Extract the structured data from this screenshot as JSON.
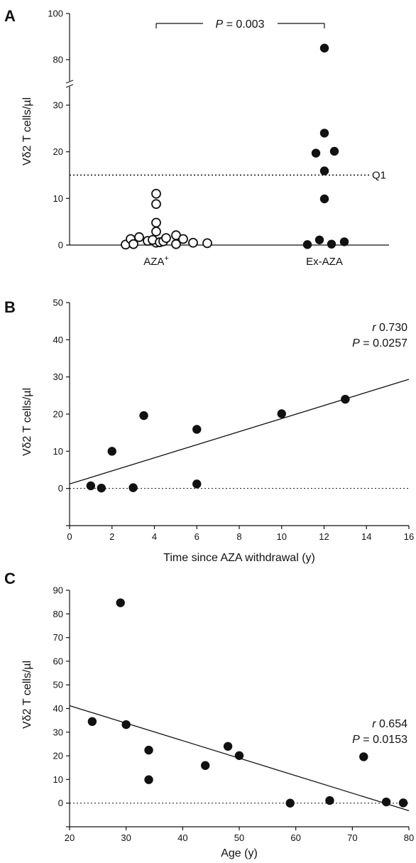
{
  "chart_data": [
    {
      "panel": "A",
      "type": "scatter",
      "ylabel": "Vδ2  T cells/µl",
      "categories": [
        "AZA⁺",
        "Ex-AZA"
      ],
      "category_sup": [
        "+",
        ""
      ],
      "category_base": [
        "AZA",
        "Ex-AZA"
      ],
      "yticks_lower": [
        0,
        10,
        20,
        30
      ],
      "yticks_upper": [
        80,
        100
      ],
      "axis_break": true,
      "series": [
        {
          "category": "AZA⁺",
          "marker": "open-circle",
          "values": [
            11,
            8.8,
            4.8,
            2.9,
            0.5,
            0.1,
            1.3,
            0.2,
            1.7,
            0.9,
            1.1,
            0.6,
            0.8,
            1.5,
            0.2,
            2.1,
            1.3,
            0.5,
            0.4
          ]
        },
        {
          "category": "Ex-AZA",
          "marker": "filled-circle",
          "values": [
            85,
            24,
            19.7,
            20.1,
            15.9,
            9.9,
            0.1,
            1.1,
            0.2,
            0.7
          ]
        }
      ],
      "reference_line": {
        "value": 15,
        "label": "Q1"
      },
      "comparison": {
        "label_italic": "P",
        "label_rest": " = 0.003"
      }
    },
    {
      "panel": "B",
      "type": "scatter",
      "xlabel": "Time since AZA withdrawal (y)",
      "ylabel": "Vδ2  T cells/µl",
      "xlim": [
        0,
        16
      ],
      "ylim": [
        -10,
        50
      ],
      "xticks": [
        0,
        2,
        4,
        6,
        8,
        10,
        12,
        14,
        16
      ],
      "yticks": [
        0,
        10,
        20,
        30,
        40,
        50
      ],
      "x": [
        1,
        1.5,
        2,
        3,
        3.5,
        6,
        6,
        10,
        13
      ],
      "y": [
        0.7,
        0.1,
        10,
        0.2,
        19.6,
        15.9,
        1.2,
        20.1,
        24
      ],
      "fit": {
        "intercept": 1.2,
        "slope": 1.76
      },
      "stats": {
        "r_italic": "r",
        "r_value": " 0.730",
        "p_italic": "P",
        "p_value": " = 0.0257"
      }
    },
    {
      "panel": "C",
      "type": "scatter",
      "xlabel": "Age (y)",
      "ylabel": "Vδ2  T cells/µl",
      "xlim": [
        20,
        80
      ],
      "ylim": [
        -10,
        90
      ],
      "xticks": [
        20,
        30,
        40,
        50,
        60,
        70,
        80
      ],
      "yticks": [
        0,
        10,
        20,
        30,
        40,
        50,
        60,
        70,
        80,
        90
      ],
      "x": [
        24,
        29,
        30,
        34,
        34,
        44,
        48,
        50,
        59,
        66,
        72,
        76,
        79
      ],
      "y": [
        34.5,
        84.7,
        33.2,
        22.4,
        9.9,
        15.9,
        24,
        20.1,
        0,
        1.1,
        19.6,
        0.5,
        0.1
      ],
      "fit": {
        "intercept": 56.0,
        "slope": -0.74
      },
      "stats": {
        "r_italic": "r",
        "r_value": " 0.654",
        "p_italic": "P",
        "p_value": " = 0.0153"
      }
    }
  ]
}
